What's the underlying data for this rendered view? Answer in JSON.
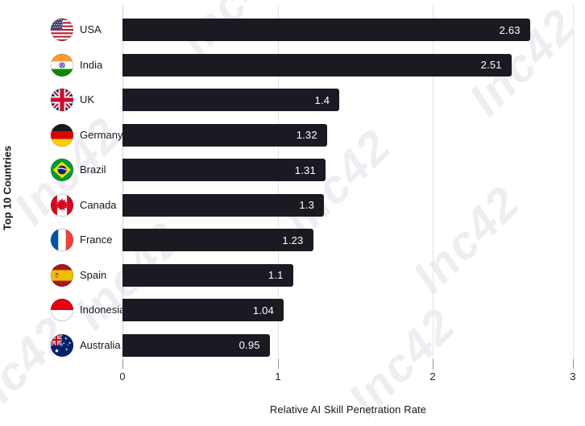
{
  "chart_data": {
    "type": "bar",
    "orientation": "horizontal",
    "xlabel": "Relative AI Skill Penetration Rate",
    "ylabel": "Top 10 Countries",
    "xlim": [
      0,
      3
    ],
    "x_ticks": [
      "0",
      "1",
      "2",
      "3"
    ],
    "grid": true,
    "legend": false,
    "categories": [
      "USA",
      "India",
      "UK",
      "Germany",
      "Brazil",
      "Canada",
      "France",
      "Spain",
      "Indonesia",
      "Australia"
    ],
    "values": [
      2.63,
      2.51,
      1.4,
      1.32,
      1.31,
      1.3,
      1.23,
      1.1,
      1.04,
      0.95
    ],
    "value_labels": [
      "2.63",
      "2.51",
      "1.4",
      "1.32",
      "1.31",
      "1.3",
      "1.23",
      "1.1",
      "1.04",
      "0.95"
    ],
    "bar_color": "#1a1a23",
    "value_label_color": "#ffffff",
    "flag_icons": [
      "usa-flag-icon",
      "india-flag-icon",
      "uk-flag-icon",
      "germany-flag-icon",
      "brazil-flag-icon",
      "canada-flag-icon",
      "france-flag-icon",
      "spain-flag-icon",
      "indonesia-flag-icon",
      "australia-flag-icon"
    ]
  },
  "watermark": {
    "text": "Inc42",
    "color": "#eeedf2"
  }
}
